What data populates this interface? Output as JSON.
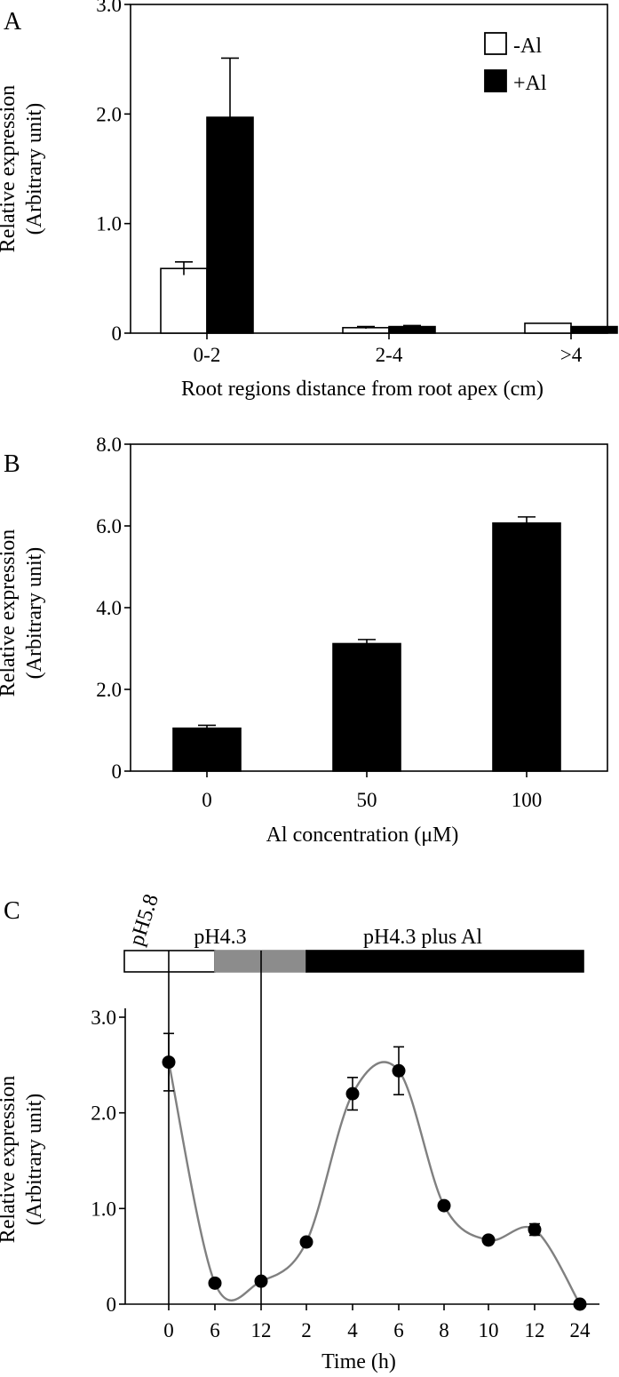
{
  "chart_data": [
    {
      "panel": "A",
      "type": "bar",
      "categories": [
        "0-2",
        "2-4",
        ">4"
      ],
      "series": [
        {
          "name": "-Al",
          "color": "#ffffff",
          "values": [
            0.59,
            0.05,
            0.09
          ],
          "errors": [
            0.06,
            0.01,
            0.0
          ]
        },
        {
          "name": "+Al",
          "color": "#000000",
          "values": [
            1.97,
            0.06,
            0.06
          ],
          "errors": [
            0.54,
            0.01,
            0.0
          ]
        }
      ],
      "ylabel": [
        "Relative expression",
        "(Arbitrary unit)"
      ],
      "xlabel": "Root regions distance from root apex (cm)",
      "ylim": [
        0,
        3.0
      ],
      "yticks": [
        "0",
        "1.0",
        "2.0",
        "3.0"
      ],
      "legend": "top-right",
      "grid": false
    },
    {
      "panel": "B",
      "type": "bar",
      "categories": [
        "0",
        "50",
        "100"
      ],
      "series": [
        {
          "color": "#000000",
          "values": [
            1.05,
            3.12,
            6.07
          ],
          "errors": [
            0.07,
            0.1,
            0.15
          ]
        }
      ],
      "ylabel": [
        "Relative expression",
        "(Arbitrary unit)"
      ],
      "xlabel": "Al concentration (μM)",
      "ylim": [
        0,
        8.0
      ],
      "yticks": [
        "0",
        "2.0",
        "4.0",
        "6.0",
        "8.0"
      ],
      "grid": false
    },
    {
      "panel": "C",
      "type": "line",
      "x": [
        "0",
        "6",
        "12",
        "2",
        "4",
        "6",
        "8",
        "10",
        "12",
        "24"
      ],
      "series": [
        {
          "color": "#808080",
          "values": [
            2.53,
            0.22,
            0.24,
            0.65,
            2.2,
            2.44,
            1.03,
            0.67,
            0.78,
            0.0
          ],
          "errors": [
            0.3,
            0.0,
            0.0,
            0.0,
            0.17,
            0.25,
            0.0,
            0.0,
            0.06,
            0.0
          ]
        }
      ],
      "ylabel": [
        "Relative expression",
        "(Arbitrary unit)"
      ],
      "xlabel": "Time (h)",
      "ylim": [
        0,
        3.0
      ],
      "yticks": [
        "0",
        "1.0",
        "2.0",
        "3.0"
      ],
      "phases": [
        {
          "label": "pH5.8",
          "color": "#ffffff",
          "from": 0,
          "to": 1
        },
        {
          "label": "pH4.3",
          "color": "#8c8c8c",
          "from": 1,
          "to": 3
        },
        {
          "label": "pH4.3 plus Al",
          "color": "#000000",
          "from": 3,
          "to": 10
        }
      ],
      "grid": false
    }
  ]
}
